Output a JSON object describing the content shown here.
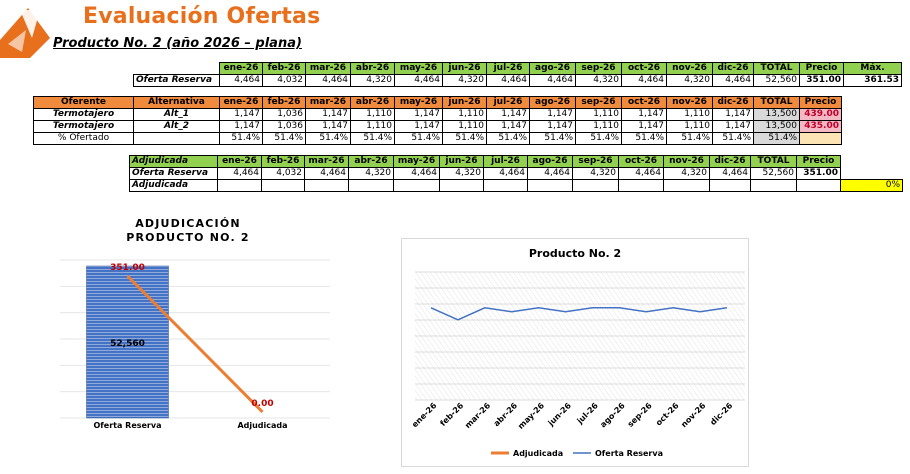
{
  "colors": {
    "orange": "#e8701c",
    "green_header": "#92d050",
    "orange_header": "#f08a3c",
    "bar_blue": "#4472c4",
    "line_orange": "#ed7d31",
    "line_blue": "#4472c4"
  },
  "header": {
    "title": "Evaluación Ofertas",
    "subtitle": "Producto No. 2 (año 2026 – plana)"
  },
  "months": [
    "ene-26",
    "feb-26",
    "mar-26",
    "abr-26",
    "may-26",
    "jun-26",
    "jul-26",
    "ago-26",
    "sep-26",
    "oct-26",
    "nov-26",
    "dic-26"
  ],
  "table1": {
    "total_label": "TOTAL",
    "price_label": "Precio",
    "max_label": "Máx.",
    "row": {
      "label": "Oferta Reserva",
      "values": [
        "4,464",
        "4,032",
        "4,464",
        "4,320",
        "4,464",
        "4,320",
        "4,464",
        "4,464",
        "4,320",
        "4,464",
        "4,320",
        "4,464"
      ],
      "total": "52,560",
      "price": "351.00",
      "max": "361.53"
    }
  },
  "table2": {
    "headers": {
      "oferente": "Oferente",
      "alternativa": "Alternativa",
      "total": "TOTAL",
      "precio": "Precio"
    },
    "rows": [
      {
        "oferente": "Termotajero",
        "alt": "Alt_1",
        "values": [
          "1,147",
          "1,036",
          "1,147",
          "1,110",
          "1,147",
          "1,110",
          "1,147",
          "1,147",
          "1,110",
          "1,147",
          "1,110",
          "1,147"
        ],
        "total": "13,500",
        "price": "439.00"
      },
      {
        "oferente": "Termotajero",
        "alt": "Alt_2",
        "values": [
          "1,147",
          "1,036",
          "1,147",
          "1,110",
          "1,147",
          "1,110",
          "1,147",
          "1,147",
          "1,110",
          "1,147",
          "1,110",
          "1,147"
        ],
        "total": "13,500",
        "price": "435.00"
      }
    ],
    "pct_row": {
      "label": "% Ofertado",
      "values": [
        "51.4%",
        "51.4%",
        "51.4%",
        "51.4%",
        "51.4%",
        "51.4%",
        "51.4%",
        "51.4%",
        "51.4%",
        "51.4%",
        "51.4%",
        "51.4%"
      ],
      "total": "51.4%"
    }
  },
  "table3": {
    "header_label": "Adjudicada",
    "total_label": "TOTAL",
    "price_label": "Precio",
    "reserva": {
      "label": "Oferta Reserva",
      "values": [
        "4,464",
        "4,032",
        "4,464",
        "4,320",
        "4,464",
        "4,320",
        "4,464",
        "4,464",
        "4,320",
        "4,464",
        "4,320",
        "4,464"
      ],
      "total": "52,560",
      "price": "351.00"
    },
    "adjudicada": {
      "label": "Adjudicada",
      "pct": "0%"
    }
  },
  "chart_data": [
    {
      "type": "bar",
      "title": "ADJUDICACIÓN PRODUCTO NO. 2",
      "categories": [
        "Oferta Reserva",
        "Adjudicada"
      ],
      "series": [
        {
          "type": "bar",
          "values": [
            52560,
            0
          ],
          "labels": [
            "52,560",
            ""
          ]
        },
        {
          "type": "line",
          "values": [
            351.0,
            0.0
          ],
          "labels": [
            "351.00",
            "0.00"
          ]
        }
      ]
    },
    {
      "type": "line",
      "title": "Producto No. 2",
      "categories": [
        "ene-26",
        "feb-26",
        "mar-26",
        "abr-26",
        "may-26",
        "jun-26",
        "jul-26",
        "ago-26",
        "sep-26",
        "oct-26",
        "nov-26",
        "dic-26"
      ],
      "series": [
        {
          "name": "Adjudicada",
          "values": [
            0,
            0,
            0,
            0,
            0,
            0,
            0,
            0,
            0,
            0,
            0,
            0
          ]
        },
        {
          "name": "Oferta Reserva",
          "values": [
            4464,
            4032,
            4464,
            4320,
            4464,
            4320,
            4464,
            4464,
            4320,
            4464,
            4320,
            4464
          ]
        }
      ],
      "legend": "bottom",
      "grid": true
    }
  ]
}
